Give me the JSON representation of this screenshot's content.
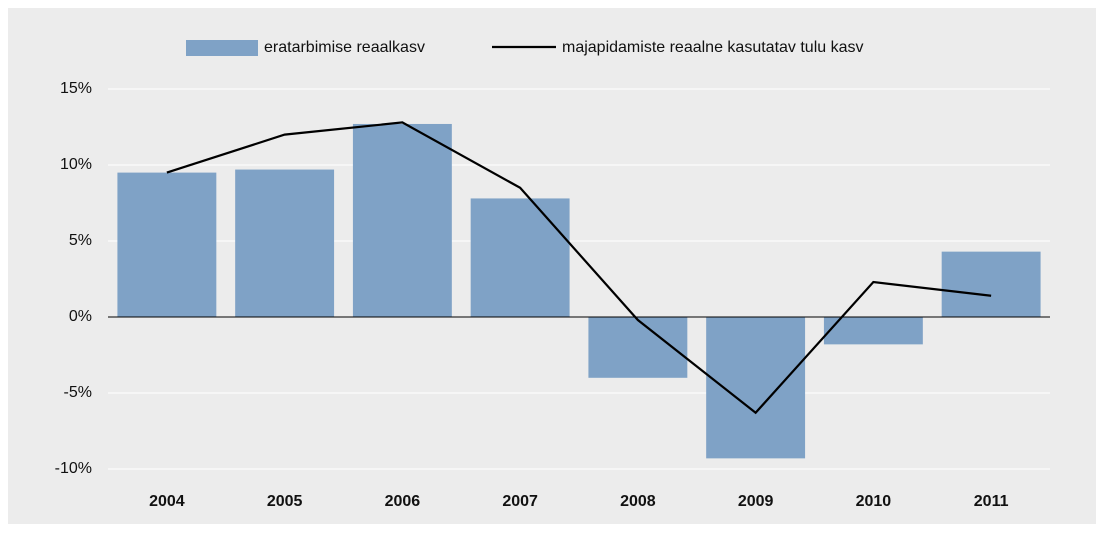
{
  "chart_data": {
    "type": "bar",
    "categories": [
      "2004",
      "2005",
      "2006",
      "2007",
      "2008",
      "2009",
      "2010",
      "2011"
    ],
    "series": [
      {
        "name": "eratarbimise reaalkasv",
        "type": "bar",
        "color": "#7fa2c6",
        "values": [
          9.5,
          9.7,
          12.7,
          7.8,
          -4.0,
          -9.3,
          -1.8,
          4.3
        ]
      },
      {
        "name": "majapidamiste reaalne kasutatav tulu kasv",
        "type": "line",
        "color": "#000000",
        "values": [
          9.5,
          12.0,
          12.8,
          8.5,
          -0.2,
          -6.3,
          2.3,
          1.4
        ]
      }
    ],
    "ylim": [
      -10,
      15
    ],
    "yticks": [
      {
        "value": -10,
        "label": "-10%"
      },
      {
        "value": -5,
        "label": "-5%"
      },
      {
        "value": 0,
        "label": "0%"
      },
      {
        "value": 5,
        "label": "5%"
      },
      {
        "value": 10,
        "label": "10%"
      },
      {
        "value": 15,
        "label": "15%"
      }
    ],
    "grid": true,
    "legend": "top"
  }
}
